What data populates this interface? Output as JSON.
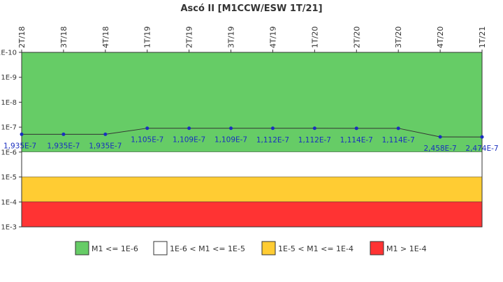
{
  "chart_data": {
    "type": "line",
    "title": "Ascó II [M1CCW/ESW 1T/21]",
    "x": [
      "2T/18",
      "3T/18",
      "4T/18",
      "1T/19",
      "2T/19",
      "3T/19",
      "4T/19",
      "1T/20",
      "2T/20",
      "3T/20",
      "4T/20",
      "1T/21"
    ],
    "series": [
      {
        "values": [
          1.935e-07,
          1.935e-07,
          1.935e-07,
          1.105e-07,
          1.109e-07,
          1.109e-07,
          1.112e-07,
          1.112e-07,
          1.114e-07,
          1.114e-07,
          2.458e-07,
          2.474e-07
        ],
        "labels": [
          "1,935E-7",
          "1,935E-7",
          "1,935E-7",
          "1,105E-7",
          "1,109E-7",
          "1,109E-7",
          "1,112E-7",
          "1,112E-7",
          "1,114E-7",
          "1,114E-7",
          "2,458E-7",
          "2,474E-7"
        ],
        "color": "#1a2fbf"
      }
    ],
    "y_scale": "log",
    "y_inverted": true,
    "ylim": [
      1e-10,
      0.001
    ],
    "y_ticks": [
      {
        "value": 1e-10,
        "label": "1E-10"
      },
      {
        "value": 1e-09,
        "label": "1E-9"
      },
      {
        "value": 1e-08,
        "label": "1E-8"
      },
      {
        "value": 1e-07,
        "label": "1E-7"
      },
      {
        "value": 1e-06,
        "label": "1E-6"
      },
      {
        "value": 1e-05,
        "label": "1E-5"
      },
      {
        "value": 0.0001,
        "label": "1E-4"
      },
      {
        "value": 0.001,
        "label": "1E-3"
      }
    ],
    "bands": [
      {
        "from": 1e-10,
        "to": 1e-06,
        "color": "#66cc66",
        "legend": "M1 <= 1E-6"
      },
      {
        "from": 1e-06,
        "to": 1e-05,
        "color": "#ffffff",
        "legend": "1E-6 < M1 <= 1E-5"
      },
      {
        "from": 1e-05,
        "to": 0.0001,
        "color": "#ffcc33",
        "legend": "1E-5 < M1 <= 1E-4"
      },
      {
        "from": 0.0001,
        "to": 0.001,
        "color": "#ff3333",
        "legend": "M1 > 1E-4"
      }
    ],
    "grid": false,
    "legend_position": "bottom"
  }
}
